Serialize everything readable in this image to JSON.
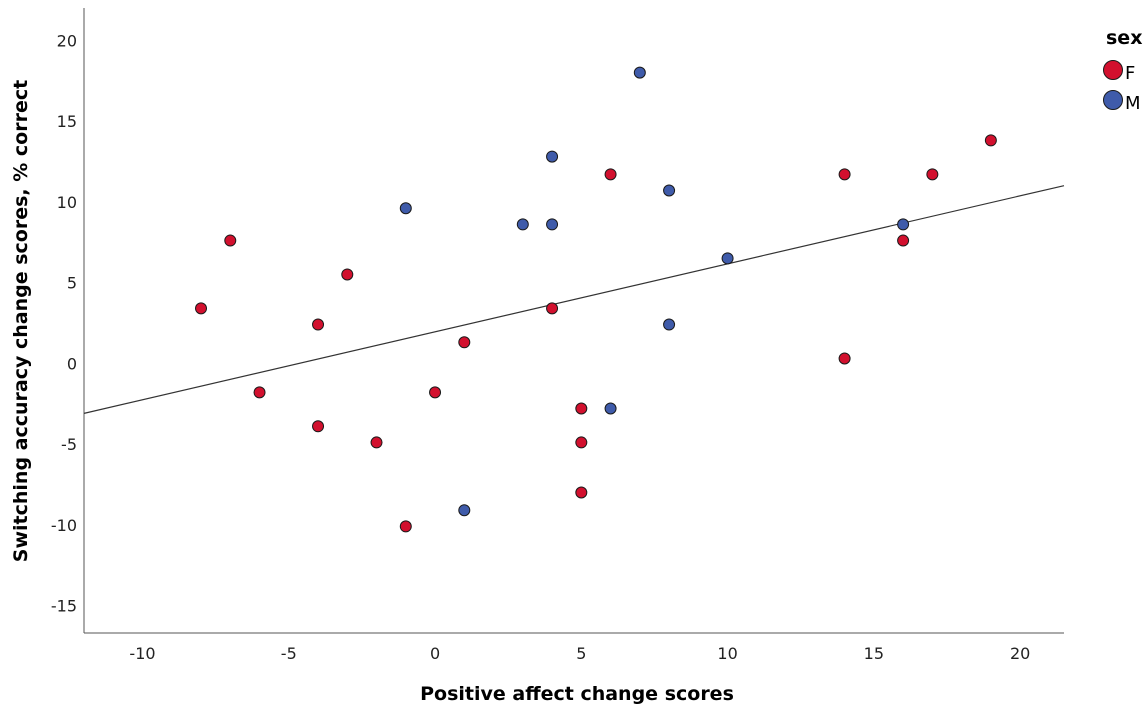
{
  "chart_data": {
    "type": "scatter",
    "title": "",
    "xlabel": "Positive affect change scores",
    "ylabel": "Switching accuracy change scores, % correct",
    "xlim": [
      -12,
      21.5
    ],
    "ylim": [
      -16.7,
      22
    ],
    "x_ticks": [
      -10,
      -5,
      0,
      5,
      10,
      15,
      20
    ],
    "y_ticks": [
      -15,
      -10,
      -5,
      0,
      5,
      10,
      15,
      20
    ],
    "x_tick_labels": [
      "-10",
      "-5",
      "0",
      "5",
      "10",
      "15",
      "20"
    ],
    "y_tick_labels": [
      "-15",
      "-10",
      "-5",
      "0",
      "5",
      "10",
      "15",
      "20"
    ],
    "grid": false,
    "legend": {
      "title": "sex",
      "placement": "top-right"
    },
    "fit_line": {
      "x": [
        -12,
        21.5
      ],
      "y": [
        -3.1,
        11.0
      ],
      "color": "#333333"
    },
    "series": [
      {
        "name": "F",
        "color": "#d2102e",
        "points": [
          [
            -8,
            3.4
          ],
          [
            -7,
            7.6
          ],
          [
            -6,
            -1.8
          ],
          [
            -4,
            2.4
          ],
          [
            -4,
            -3.9
          ],
          [
            -3,
            5.5
          ],
          [
            -2,
            -4.9
          ],
          [
            -1,
            -10.1
          ],
          [
            0,
            -1.8
          ],
          [
            1,
            1.3
          ],
          [
            4,
            3.4
          ],
          [
            5,
            -2.8
          ],
          [
            5,
            -4.9
          ],
          [
            5,
            -8.0
          ],
          [
            6,
            11.7
          ],
          [
            14,
            11.7
          ],
          [
            14,
            0.3
          ],
          [
            16,
            7.6
          ],
          [
            17,
            11.7
          ],
          [
            19,
            13.8
          ]
        ]
      },
      {
        "name": "M",
        "color": "#3f5baa",
        "points": [
          [
            -1,
            9.6
          ],
          [
            1,
            -9.1
          ],
          [
            3,
            8.6
          ],
          [
            4,
            12.8
          ],
          [
            4,
            8.6
          ],
          [
            6,
            -2.8
          ],
          [
            7,
            18.0
          ],
          [
            8,
            10.7
          ],
          [
            8,
            2.4
          ],
          [
            10,
            6.5
          ],
          [
            16,
            8.6
          ]
        ]
      }
    ]
  }
}
